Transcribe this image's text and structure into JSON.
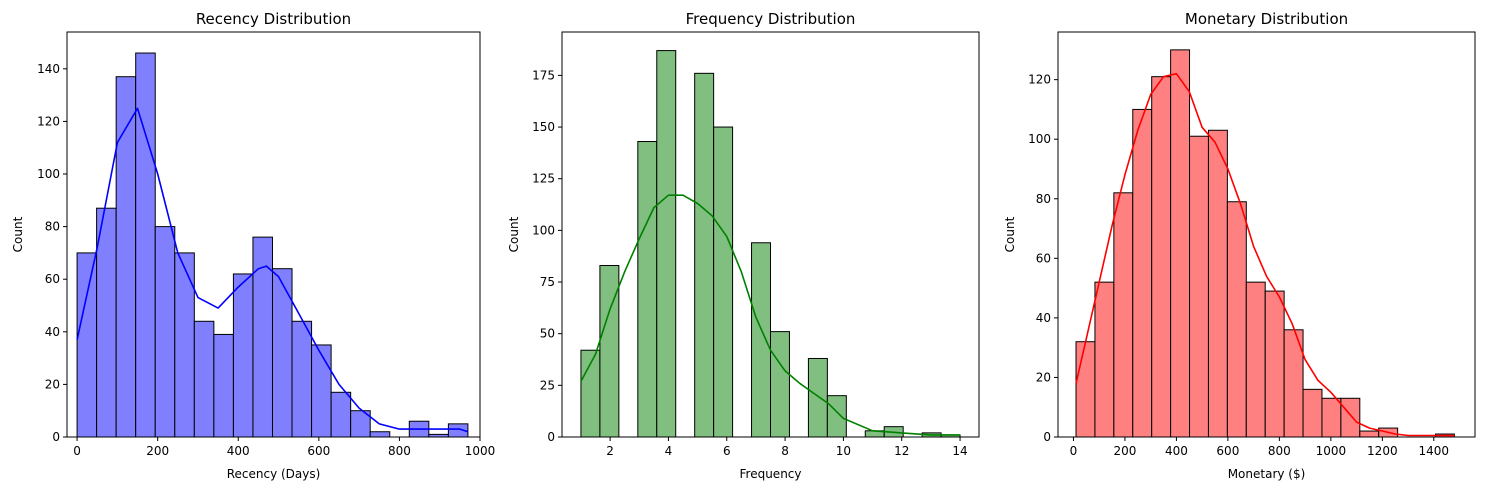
{
  "chart_data": [
    {
      "type": "histogram",
      "title": "Recency Distribution",
      "xlabel": "Recency (Days)",
      "ylabel": "Count",
      "xlim": [
        -25,
        1000
      ],
      "ylim": [
        0,
        154
      ],
      "xticks": [
        0,
        200,
        400,
        600,
        800,
        1000
      ],
      "yticks": [
        0,
        20,
        40,
        60,
        80,
        100,
        120,
        140
      ],
      "color": "#0000ff",
      "fill_color": "#8080ff",
      "bin_width": 48.5,
      "bin_start": 0,
      "counts": [
        70,
        87,
        137,
        146,
        80,
        70,
        44,
        39,
        62,
        76,
        64,
        44,
        35,
        17,
        10,
        2,
        0,
        6,
        1,
        5
      ],
      "kde": {
        "x": [
          0,
          50,
          100,
          150,
          200,
          250,
          300,
          350,
          400,
          450,
          470,
          500,
          550,
          600,
          650,
          700,
          750,
          800,
          850,
          900,
          950,
          970
        ],
        "y": [
          37,
          72,
          112,
          125,
          100,
          70,
          53,
          49,
          57,
          64,
          65,
          61,
          47,
          33,
          20,
          11,
          5,
          3,
          3,
          3,
          3,
          2
        ]
      },
      "grid": false
    },
    {
      "type": "histogram",
      "title": "Frequency Distribution",
      "xlabel": "Frequency",
      "ylabel": "Count",
      "xlim": [
        0.35,
        14.65
      ],
      "ylim": [
        0,
        196
      ],
      "xticks": [
        2,
        4,
        6,
        8,
        10,
        12,
        14
      ],
      "yticks": [
        0,
        25,
        50,
        75,
        100,
        125,
        150,
        175
      ],
      "color": "#008000",
      "fill_color": "#80bf80",
      "bin_width": 0.65,
      "bin_start": 1,
      "counts": [
        42,
        83,
        0,
        143,
        187,
        0,
        176,
        150,
        0,
        94,
        51,
        0,
        38,
        20,
        0,
        3,
        5,
        0,
        2,
        1
      ],
      "kde": {
        "x": [
          1,
          1.5,
          2,
          2.5,
          3,
          3.5,
          4,
          4.5,
          5,
          5.5,
          6,
          6.5,
          7,
          7.5,
          8,
          8.5,
          9,
          9.5,
          10,
          11,
          12,
          13,
          14
        ],
        "y": [
          27,
          40,
          62,
          80,
          96,
          111,
          117,
          117,
          113,
          107,
          97,
          80,
          58,
          42,
          32,
          26,
          21,
          16,
          9,
          3,
          2,
          1,
          1
        ]
      },
      "grid": false
    },
    {
      "type": "histogram",
      "title": "Monetary Distribution",
      "xlabel": "Monetary ($)",
      "ylabel": "Count",
      "xlim": [
        -60,
        1560
      ],
      "ylim": [
        0,
        136
      ],
      "xticks": [
        0,
        200,
        400,
        600,
        800,
        1000,
        1200,
        1400
      ],
      "yticks": [
        0,
        20,
        40,
        60,
        80,
        100,
        120
      ],
      "color": "#ff0000",
      "fill_color": "#ff8080",
      "bin_width": 73.5,
      "bin_start": 10,
      "counts": [
        32,
        52,
        82,
        110,
        121,
        130,
        101,
        103,
        79,
        52,
        49,
        36,
        16,
        13,
        13,
        2,
        3,
        0,
        0,
        1
      ],
      "kde": {
        "x": [
          10,
          50,
          100,
          150,
          200,
          250,
          300,
          350,
          400,
          450,
          500,
          550,
          600,
          650,
          700,
          750,
          800,
          850,
          900,
          950,
          1000,
          1050,
          1100,
          1150,
          1200,
          1250,
          1300,
          1350,
          1400,
          1450,
          1480
        ],
        "y": [
          18,
          33,
          52,
          71,
          88,
          103,
          115,
          121,
          122,
          116,
          104,
          99,
          90,
          78,
          64,
          54,
          47,
          38,
          26,
          19,
          15,
          10,
          5,
          3,
          2,
          1,
          0.5,
          0.5,
          0.5,
          0.5,
          0.5
        ]
      },
      "grid": false
    }
  ]
}
